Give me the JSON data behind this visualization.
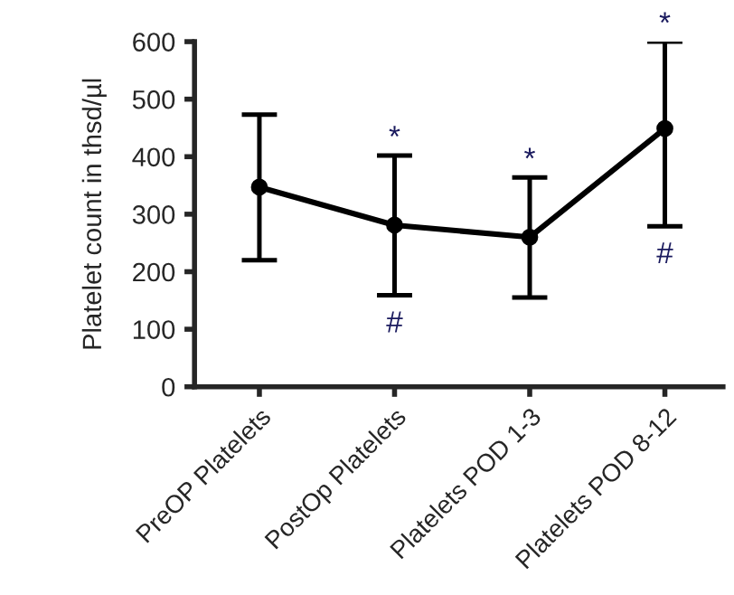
{
  "chart_data": {
    "type": "line",
    "ylabel": "Platelet count in thsd/µl",
    "categories": [
      "PreOP Platelets",
      "PostOp Platelets",
      "Platelets POD 1-3",
      "Platelets POD 8-12"
    ],
    "series": [
      {
        "color": "#000000",
        "values": [
          347,
          281,
          260,
          449
        ],
        "errors": [
          [
            220,
            473
          ],
          [
            159,
            402
          ],
          [
            155,
            364
          ],
          [
            279,
            600
          ]
        ]
      }
    ],
    "marker": "circle",
    "line_style": "solid",
    "grid": false,
    "legend": false,
    "ylim": [
      0,
      600
    ],
    "yticks": [
      0,
      100,
      200,
      300,
      400,
      500,
      600
    ],
    "annotations": [
      {
        "text": "*",
        "x": "PostOp Platelets",
        "y": 402
      },
      {
        "text": "#",
        "x": "PostOp Platelets",
        "y": 159
      },
      {
        "text": "*",
        "x": "Platelets POD 1-3",
        "y": 364
      },
      {
        "text": "*",
        "x": "Platelets POD 8-12",
        "y": 600
      },
      {
        "text": "#",
        "x": "Platelets POD 8-12",
        "y": 279
      }
    ]
  }
}
